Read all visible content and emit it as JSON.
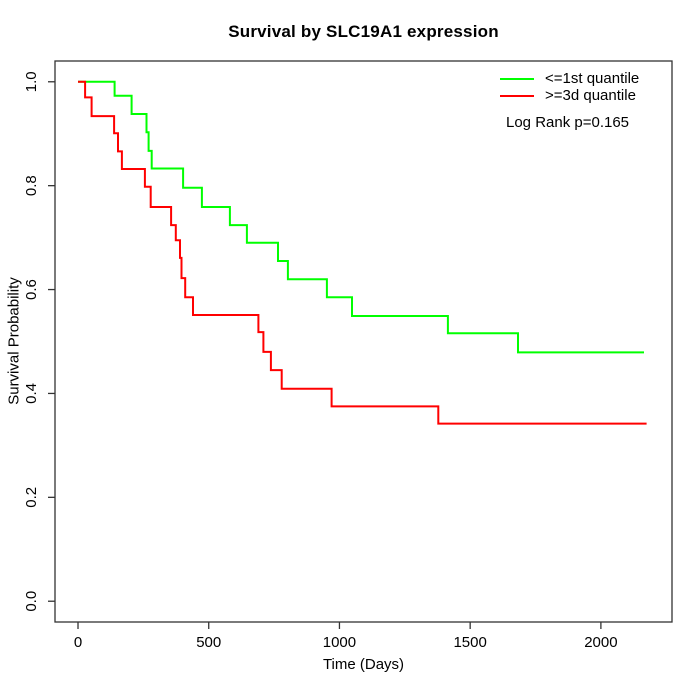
{
  "chart_data": {
    "type": "line",
    "subtype": "kaplan-meier-step",
    "title": "Survival by SLC19A1 expression",
    "xlabel": "Time (Days)",
    "ylabel": "Survival Probability",
    "annotation": "Log Rank p=0.165",
    "grid": false,
    "legend_position": "topright",
    "axis_color": "#333333",
    "x_axis": {
      "ticks": [
        0,
        500,
        1000,
        1500,
        2000
      ],
      "tick_labels": [
        "0",
        "500",
        "1000",
        "1500",
        "2000"
      ],
      "range_shown": [
        -88,
        2272
      ]
    },
    "y_axis": {
      "ticks": [
        0.0,
        0.2,
        0.4,
        0.6,
        0.8,
        1.0
      ],
      "tick_labels": [
        "0.0",
        "0.2",
        "0.4",
        "0.6",
        "0.8",
        "1.0"
      ],
      "range_shown": [
        -0.04,
        1.04
      ]
    },
    "series": [
      {
        "name": "<=1st quantile",
        "color": "#00FF00",
        "end_time": 2165,
        "steps": [
          [
            0,
            1.0
          ],
          [
            140,
            0.973
          ],
          [
            205,
            0.938
          ],
          [
            262,
            0.903
          ],
          [
            270,
            0.867
          ],
          [
            282,
            0.833
          ],
          [
            402,
            0.796
          ],
          [
            474,
            0.759
          ],
          [
            581,
            0.724
          ],
          [
            646,
            0.69
          ],
          [
            765,
            0.655
          ],
          [
            803,
            0.62
          ],
          [
            952,
            0.585
          ],
          [
            1048,
            0.549
          ],
          [
            1415,
            0.516
          ],
          [
            1683,
            0.479
          ]
        ]
      },
      {
        "name": ">=3d quantile",
        "color": "#FF0000",
        "end_time": 2175,
        "steps": [
          [
            0,
            1.0
          ],
          [
            27,
            0.97
          ],
          [
            52,
            0.934
          ],
          [
            138,
            0.901
          ],
          [
            153,
            0.866
          ],
          [
            168,
            0.832
          ],
          [
            256,
            0.798
          ],
          [
            278,
            0.759
          ],
          [
            356,
            0.724
          ],
          [
            374,
            0.695
          ],
          [
            390,
            0.661
          ],
          [
            396,
            0.622
          ],
          [
            410,
            0.585
          ],
          [
            440,
            0.551
          ],
          [
            690,
            0.518
          ],
          [
            709,
            0.48
          ],
          [
            738,
            0.445
          ],
          [
            779,
            0.409
          ],
          [
            970,
            0.375
          ],
          [
            1378,
            0.342
          ]
        ]
      }
    ]
  }
}
